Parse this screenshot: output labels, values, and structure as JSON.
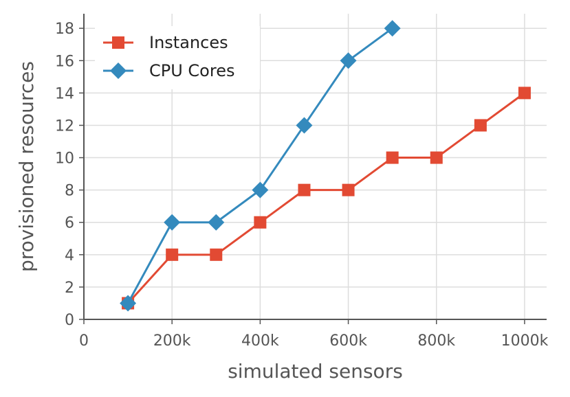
{
  "chart_data": {
    "type": "line",
    "title": "",
    "xlabel": "simulated sensors",
    "ylabel": "provisioned resources",
    "xlim": [
      0,
      1050000
    ],
    "ylim": [
      0,
      18.9
    ],
    "grid": true,
    "legend_position": "top-left",
    "x_ticks": [
      {
        "value": 0,
        "label": "0"
      },
      {
        "value": 200000,
        "label": "200k"
      },
      {
        "value": 400000,
        "label": "400k"
      },
      {
        "value": 600000,
        "label": "600k"
      },
      {
        "value": 800000,
        "label": "800k"
      },
      {
        "value": 1000000,
        "label": "1000k"
      }
    ],
    "y_ticks": [
      {
        "value": 0,
        "label": "0"
      },
      {
        "value": 2,
        "label": "2"
      },
      {
        "value": 4,
        "label": "4"
      },
      {
        "value": 6,
        "label": "6"
      },
      {
        "value": 8,
        "label": "8"
      },
      {
        "value": 10,
        "label": "10"
      },
      {
        "value": 12,
        "label": "12"
      },
      {
        "value": 14,
        "label": "14"
      },
      {
        "value": 16,
        "label": "16"
      },
      {
        "value": 18,
        "label": "18"
      }
    ],
    "series": [
      {
        "name": "Instances",
        "color": "#e24a33",
        "marker": "square",
        "x": [
          100000,
          200000,
          300000,
          400000,
          500000,
          600000,
          700000,
          800000,
          900000,
          1000000
        ],
        "values": [
          1,
          4,
          4,
          6,
          8,
          8,
          10,
          10,
          12,
          14
        ]
      },
      {
        "name": "CPU Cores",
        "color": "#348abd",
        "marker": "diamond",
        "x": [
          100000,
          200000,
          300000,
          400000,
          500000,
          600000,
          700000
        ],
        "values": [
          1,
          6,
          6,
          8,
          12,
          16,
          18
        ]
      }
    ]
  }
}
